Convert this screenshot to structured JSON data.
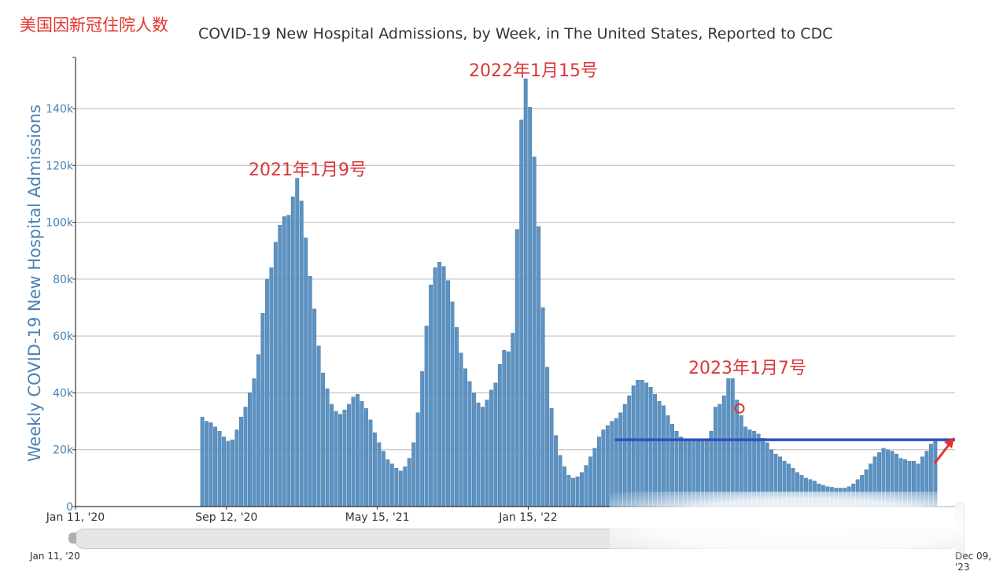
{
  "corner_label": "美国因新冠住院人数",
  "title": "COVID-19 New Hospital Admissions, by Week, in The United States, Reported to CDC",
  "annotations": [
    {
      "text": "2021年1月9号"
    },
    {
      "text": "2022年1月15号"
    },
    {
      "text": "2023年1月7号"
    }
  ],
  "range_slider": {
    "start_label": "Jan 11, '20",
    "end_label": "Dec 09, '23"
  },
  "colors": {
    "bar": "#5b93c4",
    "bar_edge": "#3f6f9a",
    "reference_line": "#2e4fc0",
    "arrow": "#e0352b",
    "marker": "#e0352b"
  },
  "chart_data": {
    "type": "bar",
    "title": "COVID-19 New Hospital Admissions, by Week, in The United States, Reported to CDC",
    "xlabel": "",
    "ylabel": "Weekly COVID-19 New Hospital Admissions",
    "ylim": [
      0,
      150000
    ],
    "yticks": [
      0,
      20000,
      40000,
      60000,
      80000,
      100000,
      120000,
      140000
    ],
    "ytick_labels": [
      "0",
      "20k",
      "40k",
      "60k",
      "80k",
      "100k",
      "120k",
      "140k"
    ],
    "x_range": [
      "2020-01-11",
      "2023-12-09"
    ],
    "xtick_labels": [
      {
        "date": "2020-01-11",
        "label": "Jan 11, '20"
      },
      {
        "date": "2020-09-12",
        "label": "Sep 12, '20"
      },
      {
        "date": "2021-05-15",
        "label": "May 15, '21"
      },
      {
        "date": "2022-01-15",
        "label": "Jan 15, '22"
      }
    ],
    "grid": true,
    "first_bar_week": "2020-08-01",
    "values": [
      31500,
      30000,
      29500,
      28000,
      26500,
      24500,
      23000,
      23500,
      27000,
      31500,
      35000,
      40000,
      45000,
      53500,
      68000,
      80000,
      84000,
      93000,
      99000,
      102000,
      102500,
      109000,
      115500,
      107500,
      94500,
      81000,
      69500,
      56500,
      47000,
      41500,
      36000,
      33500,
      32500,
      34000,
      36000,
      38500,
      39500,
      37000,
      34500,
      30500,
      26000,
      22500,
      19500,
      16500,
      15000,
      13500,
      12500,
      14000,
      17000,
      22500,
      33000,
      47500,
      63500,
      78000,
      84000,
      86000,
      84500,
      79500,
      72000,
      63000,
      54000,
      48500,
      44000,
      40000,
      36500,
      35000,
      37500,
      41000,
      43500,
      50000,
      55000,
      54500,
      61000,
      97500,
      136000,
      150500,
      140500,
      123000,
      98500,
      70000,
      49000,
      34500,
      25000,
      18000,
      14000,
      11000,
      10000,
      10500,
      12000,
      14500,
      17500,
      20500,
      24500,
      27000,
      28500,
      30000,
      31000,
      33000,
      36000,
      39000,
      42500,
      44500,
      44500,
      43500,
      42000,
      39500,
      37000,
      35500,
      32000,
      29000,
      26500,
      24500,
      23000,
      23500,
      23500,
      23000,
      23000,
      23500,
      26500,
      35000,
      36000,
      39000,
      45000,
      45000,
      37500,
      32000,
      28000,
      27000,
      26500,
      25500,
      24000,
      22500,
      20000,
      18500,
      17500,
      16000,
      15000,
      13500,
      12000,
      11000,
      10000,
      9500,
      9000,
      8000,
      7500,
      7000,
      6800,
      6500,
      6500,
      6500,
      7000,
      8000,
      9500,
      11000,
      13000,
      15000,
      17500,
      19000,
      20500,
      20000,
      19500,
      18500,
      17000,
      16500,
      16000,
      16000,
      15000,
      17500,
      19500,
      22000,
      23500
    ],
    "reference_line": {
      "value": 23500,
      "from_week": "2022-06-04"
    },
    "marker": {
      "week": "2022-12-24",
      "value": 34500
    }
  }
}
